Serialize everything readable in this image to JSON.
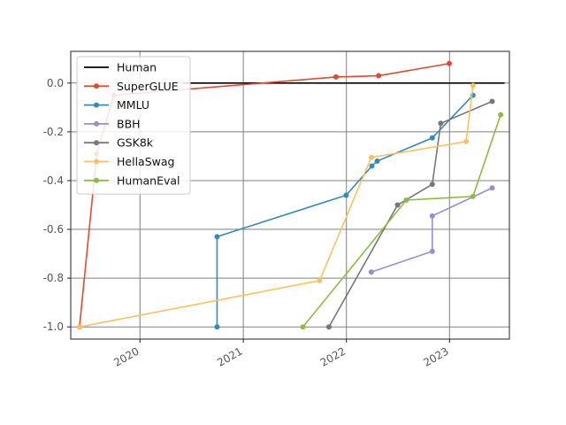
{
  "chart_data": {
    "type": "line",
    "title": "",
    "xlabel": "",
    "ylabel": "",
    "x_axis_type": "date",
    "xlim": [
      "2019-05-01",
      "2023-08-01"
    ],
    "ylim": [
      -1.05,
      0.13
    ],
    "grid": true,
    "legend_position": "top-left",
    "x_ticks": [
      "2020",
      "2021",
      "2022",
      "2023"
    ],
    "y_ticks": [
      "0.0",
      "-0.2",
      "-0.4",
      "-0.6",
      "-0.8",
      "-1.0"
    ],
    "y_tick_values": [
      0.0,
      -0.2,
      -0.4,
      -0.6,
      -0.8,
      -1.0
    ],
    "series": [
      {
        "name": "Human",
        "color": "#000000",
        "markers": false,
        "points": [
          [
            "2020-06-01",
            0.0
          ],
          [
            "2023-07-15",
            0.0
          ]
        ]
      },
      {
        "name": "SuperGLUE",
        "color": "#e24a33",
        "markers": true,
        "points": [
          [
            "2019-06-01",
            -1.0
          ],
          [
            "2019-08-01",
            -0.29
          ],
          [
            "2019-10-01",
            -0.05
          ],
          [
            "2021-11-25",
            0.025
          ],
          [
            "2022-04-25",
            0.03
          ],
          [
            "2022-12-31",
            0.08
          ]
        ]
      },
      {
        "name": "MMLU",
        "color": "#348abd",
        "markers": true,
        "points": [
          [
            "2020-09-30",
            -1.0
          ],
          [
            "2020-09-30",
            -0.63
          ],
          [
            "2021-12-31",
            -0.46
          ],
          [
            "2022-04-01",
            -0.34
          ],
          [
            "2022-04-20",
            -0.32
          ],
          [
            "2022-11-01",
            -0.225
          ],
          [
            "2023-03-25",
            -0.05
          ]
        ]
      },
      {
        "name": "BBH",
        "color": "#988ed5",
        "markers": true,
        "points": [
          [
            "2022-03-30",
            -0.775
          ],
          [
            "2022-11-01",
            -0.69
          ],
          [
            "2022-11-01",
            -0.545
          ],
          [
            "2023-06-01",
            -0.43
          ]
        ]
      },
      {
        "name": "GSK8k",
        "color": "#777777",
        "markers": true,
        "points": [
          [
            "2021-10-31",
            -1.0
          ],
          [
            "2022-07-01",
            -0.5
          ],
          [
            "2022-11-01",
            -0.415
          ],
          [
            "2022-12-01",
            -0.165
          ],
          [
            "2023-06-01",
            -0.075
          ]
        ]
      },
      {
        "name": "HellaSwag",
        "color": "#fbc15e",
        "markers": true,
        "points": [
          [
            "2019-06-01",
            -1.0
          ],
          [
            "2021-09-28",
            -0.81
          ],
          [
            "2022-03-30",
            -0.305
          ],
          [
            "2023-03-01",
            -0.24
          ],
          [
            "2023-03-25",
            -0.01
          ]
        ]
      },
      {
        "name": "HumanEval",
        "color": "#8eba42",
        "markers": true,
        "points": [
          [
            "2021-07-31",
            -1.0
          ],
          [
            "2022-08-01",
            -0.48
          ],
          [
            "2023-03-25",
            -0.465
          ],
          [
            "2023-07-01",
            -0.13
          ]
        ]
      }
    ]
  }
}
